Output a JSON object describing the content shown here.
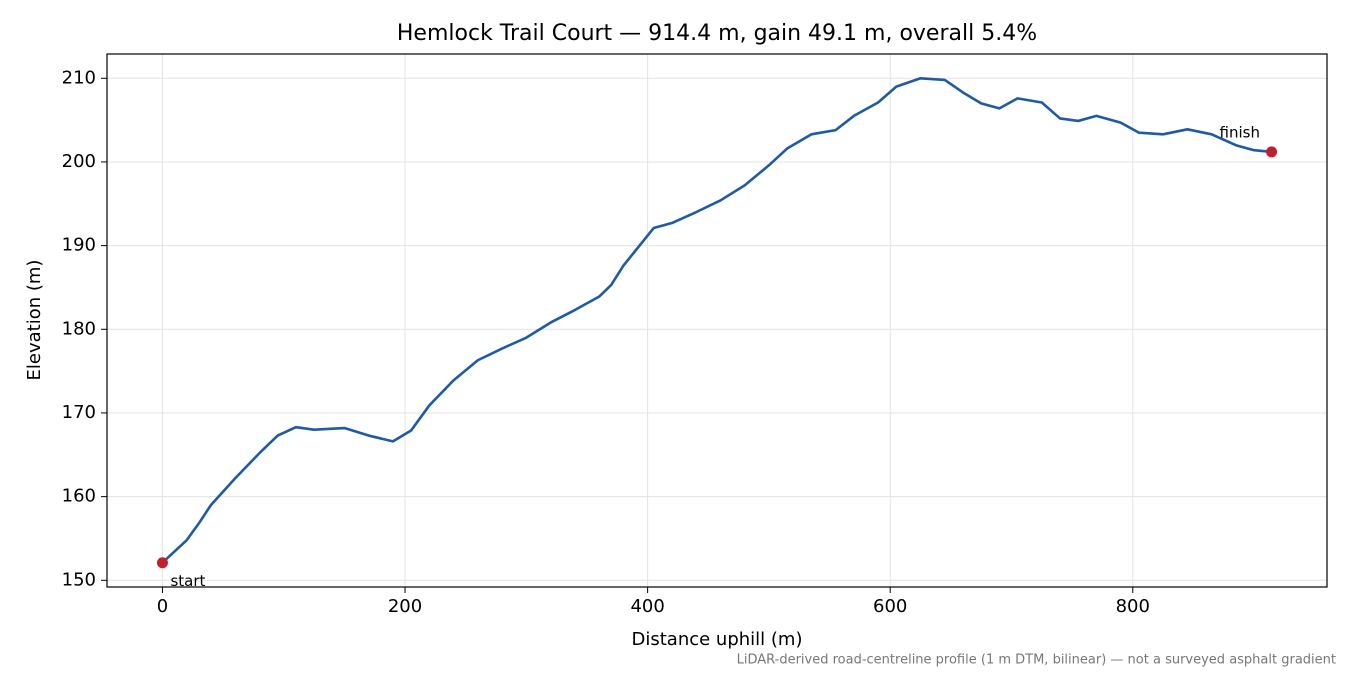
{
  "chart_data": {
    "type": "line",
    "title": "Hemlock Trail Court — 914.4 m, gain 49.1 m, overall 5.4%",
    "xlabel": "Distance uphill (m)",
    "ylabel": "Elevation (m)",
    "footnote": "LiDAR-derived road-centreline profile (1 m DTM, bilinear) — not a surveyed asphalt gradient",
    "start_label": "start",
    "finish_label": "finish",
    "x": [
      0,
      20,
      30,
      40,
      60,
      80,
      95,
      110,
      125,
      150,
      170,
      190,
      205,
      220,
      240,
      260,
      280,
      300,
      320,
      340,
      360,
      370,
      380,
      395,
      405,
      420,
      440,
      460,
      480,
      500,
      515,
      535,
      555,
      570,
      590,
      605,
      625,
      645,
      660,
      675,
      690,
      705,
      725,
      740,
      755,
      770,
      790,
      805,
      825,
      845,
      865,
      885,
      900,
      914.4
    ],
    "series": [
      {
        "name": "Elevation",
        "color": "#1f5aa6",
        "values": [
          152.1,
          154.8,
          156.8,
          159.0,
          162.2,
          165.2,
          167.3,
          168.3,
          168.0,
          168.2,
          167.3,
          166.6,
          167.9,
          170.9,
          173.9,
          176.3,
          177.7,
          179.0,
          180.8,
          182.3,
          183.9,
          185.3,
          187.6,
          190.3,
          192.1,
          192.7,
          194.0,
          195.4,
          197.2,
          199.6,
          201.6,
          203.3,
          203.8,
          205.5,
          207.1,
          209.0,
          210.0,
          209.8,
          208.3,
          207.0,
          206.4,
          207.6,
          207.1,
          205.2,
          204.9,
          205.5,
          204.7,
          203.5,
          203.3,
          203.9,
          203.3,
          202.0,
          201.4,
          201.2
        ]
      }
    ],
    "endpoint_color": "#c0202c",
    "xlim": [
      -45.72,
      960.12
    ],
    "ylim": [
      149.2,
      212.9
    ],
    "xticks": [
      0,
      200,
      400,
      600,
      800
    ],
    "yticks": [
      150,
      160,
      170,
      180,
      190,
      200,
      210
    ],
    "grid": true
  }
}
